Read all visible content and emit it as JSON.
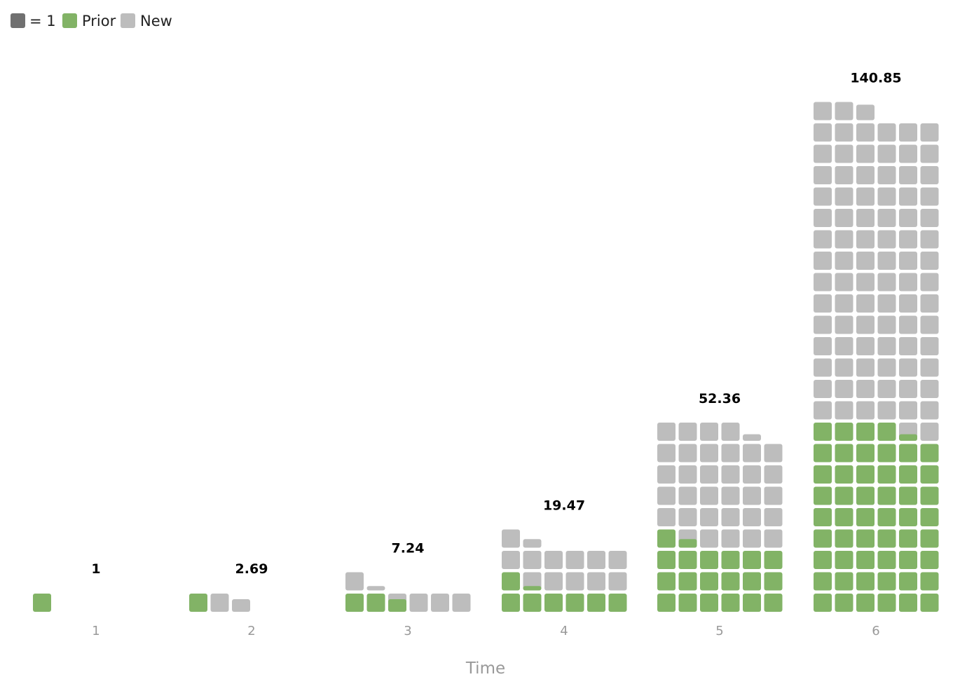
{
  "legend": {
    "unit_label": "= 1",
    "items": [
      {
        "label": "Prior",
        "color": "#82b366"
      },
      {
        "label": "New",
        "color": "#bdbdbd"
      }
    ],
    "unit_color": "#707070"
  },
  "chart_data": {
    "type": "waffle-bar",
    "xlabel": "Time",
    "categories": [
      "1",
      "2",
      "3",
      "4",
      "5",
      "6"
    ],
    "series": [
      {
        "name": "Prior",
        "values": [
          1,
          1,
          2.69,
          7.24,
          19.47,
          52.36
        ],
        "color": "#82b366"
      },
      {
        "name": "New",
        "values": [
          0,
          1.69,
          4.55,
          12.23,
          32.89,
          88.49
        ],
        "color": "#bdbdbd"
      }
    ],
    "totals": [
      1,
      2.69,
      7.24,
      19.47,
      52.36,
      140.85
    ],
    "total_labels": [
      "1",
      "2.69",
      "7.24",
      "19.47",
      "52.36",
      "140.85"
    ],
    "units_per_row": 6,
    "unit_value": 1
  }
}
